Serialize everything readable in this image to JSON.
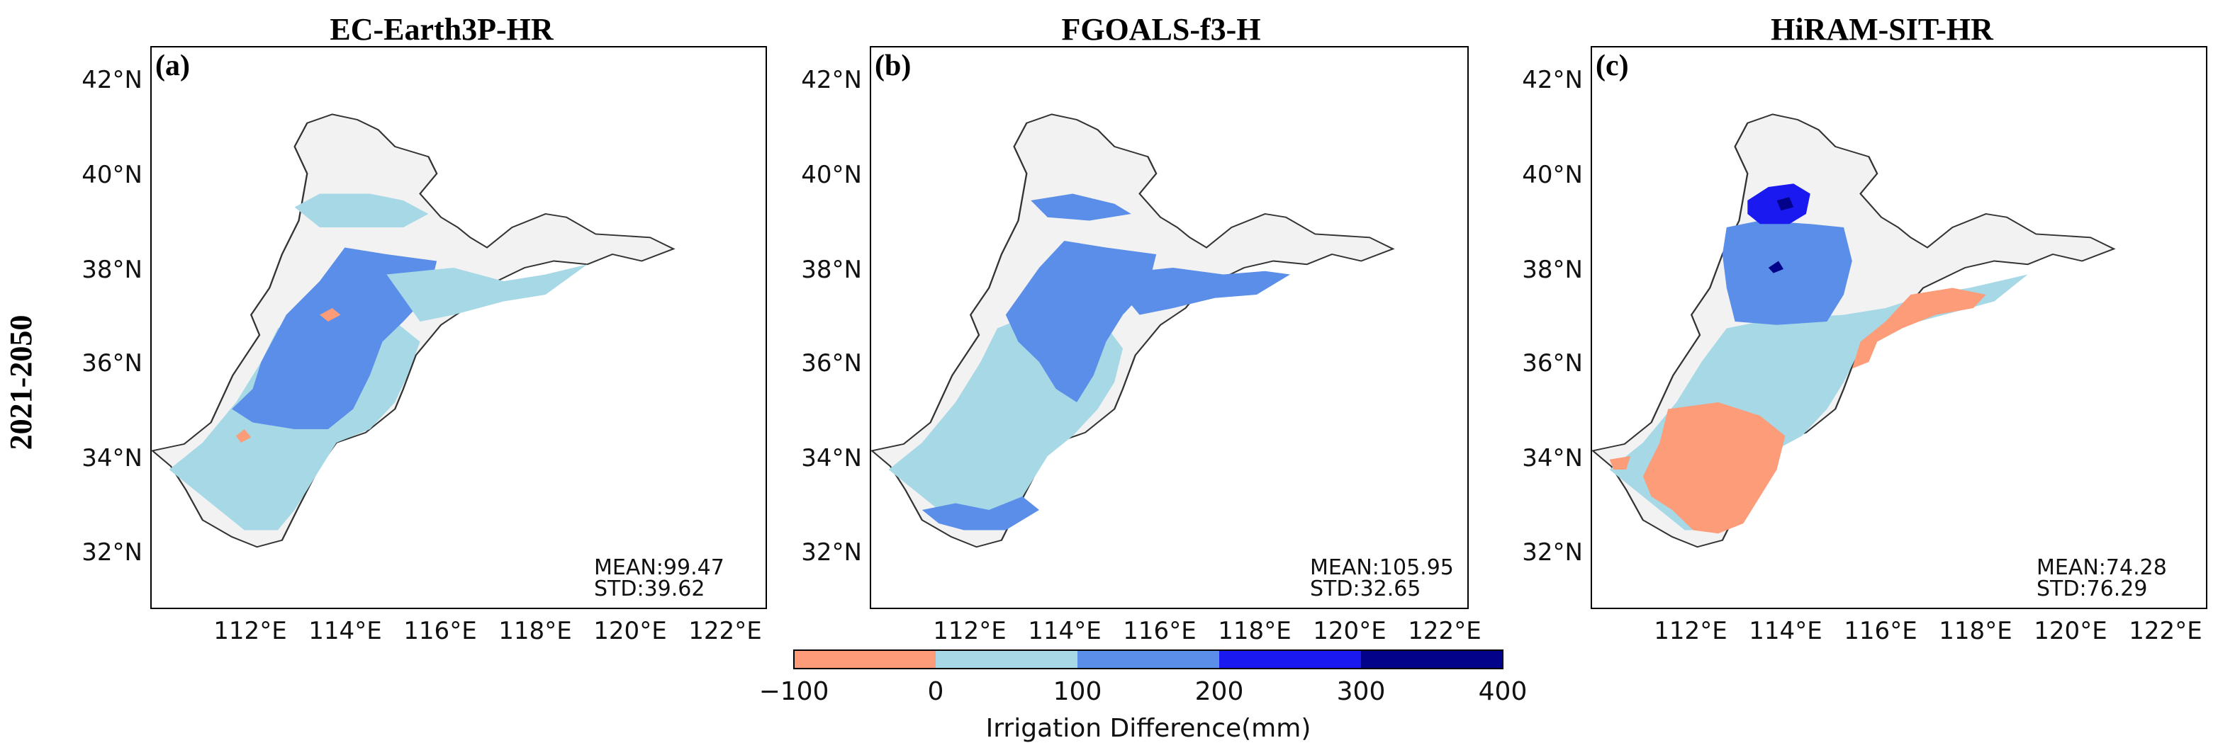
{
  "row_label": "2021-2050",
  "colorbar": {
    "label": "Irrigation Difference(mm)",
    "ticks": [
      "−100",
      "0",
      "100",
      "200",
      "300",
      "400"
    ],
    "colors": [
      "#fc9c78",
      "#a7d8e6",
      "#5a8ee8",
      "#1a1af0",
      "#02028a"
    ]
  },
  "axes": {
    "lon_ticks": [
      "112°E",
      "114°E",
      "116°E",
      "118°E",
      "120°E",
      "122°E"
    ],
    "lat_ticks": [
      "42°N",
      "40°N",
      "38°N",
      "36°N",
      "34°N",
      "32°N"
    ]
  },
  "panels": [
    {
      "label": "(a)",
      "title": "EC-Earth3P-HR",
      "mean": "MEAN:99.47",
      "std": "STD:39.62"
    },
    {
      "label": "(b)",
      "title": "FGOALS-f3-H",
      "mean": "MEAN:105.95",
      "std": "STD:32.65"
    },
    {
      "label": "(c)",
      "title": "HiRAM-SIT-HR",
      "mean": "MEAN:74.28",
      "std": "STD:76.29"
    }
  ],
  "colors": {
    "region_fill": "#f2f2f2",
    "outline": "#333333",
    "frame": "#000000"
  }
}
